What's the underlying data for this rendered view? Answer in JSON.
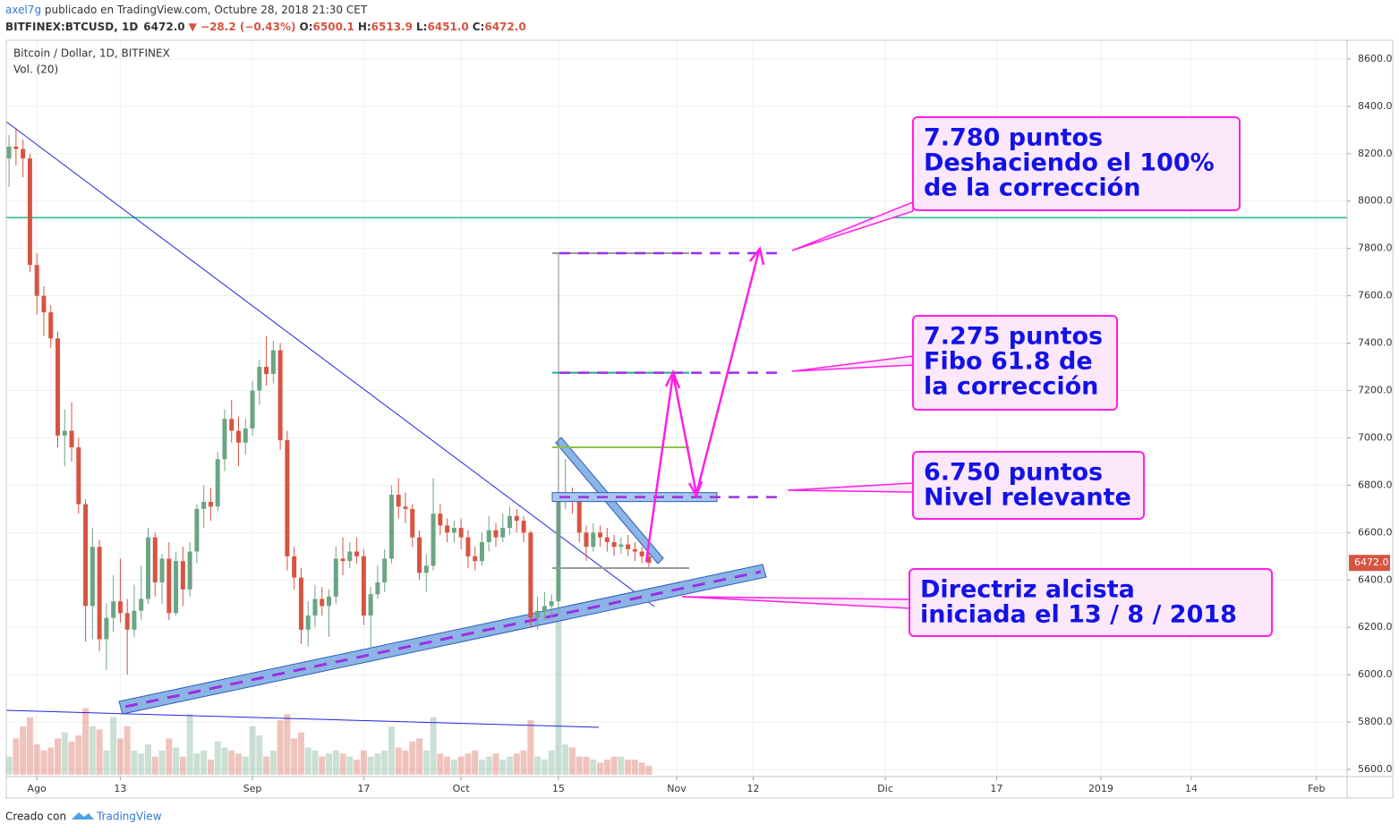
{
  "header": {
    "author": "axel7g",
    "published": " publicado en TradingView.com, Octubre 28, 2018 21:30 CET",
    "symbol": "BITFINEX:BTCUSD, 1D",
    "last": "6472.0",
    "change": "▼ −28.2 (−0.43%)",
    "ohlc": [
      {
        "label": "O:",
        "value": "6500.1"
      },
      {
        "label": "H:",
        "value": "6513.9"
      },
      {
        "label": "L:",
        "value": "6451.0"
      },
      {
        "label": "C:",
        "value": "6472.0"
      }
    ]
  },
  "footer": {
    "made_with": "Creado con",
    "brand": "TradingView"
  },
  "chart_data": {
    "type": "candlestick",
    "legend": [
      "Bitcoin / Dollar, 1D, BITFINEX",
      "Vol. (20)"
    ],
    "up_color": "#6ba583",
    "down_color": "#d75442",
    "grid": true,
    "candles": [
      [
        8180,
        8280,
        8060,
        8230
      ],
      [
        8230,
        8310,
        8150,
        8220
      ],
      [
        8220,
        8260,
        8100,
        8180
      ],
      [
        8180,
        8200,
        7700,
        7730
      ],
      [
        7730,
        7780,
        7520,
        7600
      ],
      [
        7600,
        7640,
        7430,
        7530
      ],
      [
        7530,
        7560,
        7380,
        7420
      ],
      [
        7420,
        7450,
        6960,
        7010
      ],
      [
        7010,
        7120,
        6880,
        7030
      ],
      [
        7030,
        7150,
        6900,
        6960
      ],
      [
        6960,
        7000,
        6680,
        6720
      ],
      [
        6720,
        6740,
        6140,
        6290
      ],
      [
        6290,
        6620,
        6150,
        6540
      ],
      [
        6540,
        6570,
        6100,
        6150
      ],
      [
        6150,
        6300,
        6020,
        6240
      ],
      [
        6240,
        6420,
        6180,
        6310
      ],
      [
        6310,
        6490,
        6220,
        6260
      ],
      [
        6260,
        6320,
        6000,
        6190
      ],
      [
        6190,
        6380,
        6160,
        6270
      ],
      [
        6270,
        6460,
        6230,
        6320
      ],
      [
        6320,
        6620,
        6300,
        6580
      ],
      [
        6580,
        6600,
        6330,
        6390
      ],
      [
        6390,
        6510,
        6300,
        6490
      ],
      [
        6490,
        6560,
        6230,
        6260
      ],
      [
        6260,
        6520,
        6250,
        6480
      ],
      [
        6480,
        6540,
        6290,
        6360
      ],
      [
        6360,
        6560,
        6330,
        6520
      ],
      [
        6520,
        6720,
        6470,
        6700
      ],
      [
        6700,
        6800,
        6620,
        6730
      ],
      [
        6730,
        6790,
        6650,
        6710
      ],
      [
        6710,
        6940,
        6690,
        6910
      ],
      [
        6910,
        7120,
        6860,
        7080
      ],
      [
        7080,
        7160,
        6980,
        7030
      ],
      [
        7030,
        7090,
        6880,
        6980
      ],
      [
        6980,
        7080,
        6930,
        7040
      ],
      [
        7040,
        7240,
        7010,
        7200
      ],
      [
        7200,
        7330,
        7140,
        7300
      ],
      [
        7300,
        7430,
        7220,
        7270
      ],
      [
        7270,
        7410,
        7230,
        7370
      ],
      [
        7370,
        7400,
        6950,
        6990
      ],
      [
        6990,
        7030,
        6440,
        6500
      ],
      [
        6500,
        6540,
        6360,
        6410
      ],
      [
        6410,
        6450,
        6130,
        6190
      ],
      [
        6190,
        6310,
        6120,
        6250
      ],
      [
        6250,
        6380,
        6200,
        6320
      ],
      [
        6320,
        6370,
        6250,
        6290
      ],
      [
        6290,
        6360,
        6160,
        6330
      ],
      [
        6330,
        6540,
        6300,
        6490
      ],
      [
        6490,
        6580,
        6420,
        6480
      ],
      [
        6480,
        6560,
        6450,
        6520
      ],
      [
        6520,
        6580,
        6470,
        6500
      ],
      [
        6500,
        6530,
        6210,
        6250
      ],
      [
        6250,
        6370,
        6110,
        6340
      ],
      [
        6340,
        6460,
        6320,
        6390
      ],
      [
        6390,
        6530,
        6350,
        6490
      ],
      [
        6490,
        6800,
        6470,
        6760
      ],
      [
        6760,
        6830,
        6660,
        6710
      ],
      [
        6710,
        6770,
        6640,
        6700
      ],
      [
        6700,
        6720,
        6540,
        6580
      ],
      [
        6580,
        6610,
        6400,
        6430
      ],
      [
        6430,
        6510,
        6350,
        6460
      ],
      [
        6460,
        6830,
        6440,
        6680
      ],
      [
        6680,
        6720,
        6590,
        6630
      ],
      [
        6630,
        6660,
        6560,
        6600
      ],
      [
        6600,
        6650,
        6560,
        6620
      ],
      [
        6620,
        6660,
        6530,
        6580
      ],
      [
        6580,
        6610,
        6450,
        6500
      ],
      [
        6500,
        6540,
        6440,
        6480
      ],
      [
        6480,
        6600,
        6460,
        6560
      ],
      [
        6560,
        6670,
        6520,
        6610
      ],
      [
        6610,
        6640,
        6540,
        6580
      ],
      [
        6580,
        6680,
        6560,
        6620
      ],
      [
        6620,
        6710,
        6590,
        6670
      ],
      [
        6670,
        6700,
        6600,
        6650
      ],
      [
        6650,
        6670,
        6560,
        6600
      ],
      [
        6600,
        6610,
        6200,
        6240
      ],
      [
        6240,
        6330,
        6190,
        6270
      ],
      [
        6270,
        6350,
        6230,
        6290
      ],
      [
        6290,
        6340,
        6240,
        6310
      ],
      [
        6310,
        6990,
        6250,
        6730
      ],
      [
        6730,
        6910,
        6700,
        6750
      ],
      [
        6750,
        6790,
        6680,
        6730
      ],
      [
        6730,
        6760,
        6560,
        6600
      ],
      [
        6600,
        6630,
        6480,
        6540
      ],
      [
        6540,
        6640,
        6520,
        6600
      ],
      [
        6600,
        6630,
        6540,
        6580
      ],
      [
        6580,
        6620,
        6520,
        6560
      ],
      [
        6560,
        6590,
        6500,
        6540
      ],
      [
        6540,
        6580,
        6510,
        6550
      ],
      [
        6550,
        6590,
        6500,
        6530
      ],
      [
        6530,
        6560,
        6480,
        6520
      ],
      [
        6520,
        6540,
        6470,
        6500
      ],
      [
        6500,
        6514,
        6451,
        6472
      ]
    ],
    "volume": [
      30,
      60,
      80,
      95,
      50,
      40,
      45,
      60,
      70,
      55,
      65,
      110,
      80,
      75,
      40,
      95,
      60,
      80,
      40,
      35,
      50,
      30,
      40,
      60,
      45,
      30,
      100,
      35,
      40,
      25,
      55,
      45,
      40,
      35,
      30,
      80,
      65,
      30,
      40,
      90,
      100,
      60,
      70,
      45,
      40,
      30,
      35,
      40,
      35,
      30,
      25,
      40,
      30,
      35,
      40,
      80,
      45,
      40,
      55,
      60,
      40,
      95,
      35,
      30,
      25,
      30,
      35,
      40,
      25,
      30,
      35,
      25,
      30,
      35,
      40,
      90,
      30,
      25,
      40,
      260,
      50,
      45,
      30,
      30,
      25,
      20,
      25,
      30,
      30,
      25,
      25,
      20,
      15
    ],
    "xlim": [
      -0.4,
      192.4
    ],
    "xticks": [
      {
        "value": 4,
        "label": "Ago"
      },
      {
        "value": 16,
        "label": "13"
      },
      {
        "value": 35,
        "label": "Sep"
      },
      {
        "value": 51,
        "label": "17"
      },
      {
        "value": 65,
        "label": "Oct"
      },
      {
        "value": 79,
        "label": "15"
      },
      {
        "value": 96,
        "label": "Nov"
      },
      {
        "value": 107,
        "label": "12"
      },
      {
        "value": 126,
        "label": "Dic"
      },
      {
        "value": 142,
        "label": "17"
      },
      {
        "value": 157,
        "label": "2019"
      },
      {
        "value": 170,
        "label": "14"
      },
      {
        "value": 188,
        "label": "Feb"
      }
    ],
    "ylim": [
      5570,
      8679
    ],
    "yticks": [
      {
        "value": 5600,
        "label": "5600.0"
      },
      {
        "value": 5800,
        "label": "5800.0"
      },
      {
        "value": 6000,
        "label": "6000.0"
      },
      {
        "value": 6200,
        "label": "6200.0"
      },
      {
        "value": 6400,
        "label": "6400.0"
      },
      {
        "value": 6600,
        "label": "6600.0"
      },
      {
        "value": 6800,
        "label": "6800.0"
      },
      {
        "value": 7000,
        "label": "7000.0"
      },
      {
        "value": 7200,
        "label": "7200.0"
      },
      {
        "value": 7400,
        "label": "7400.0"
      },
      {
        "value": 7600,
        "label": "7600.0"
      },
      {
        "value": 7800,
        "label": "7800.0"
      },
      {
        "value": 8000,
        "label": "8000.0"
      },
      {
        "value": 8200,
        "label": "8200.0"
      },
      {
        "value": 8400,
        "label": "8400.0"
      },
      {
        "value": 8600,
        "label": "8600.0"
      }
    ],
    "last_price": {
      "value": 6472,
      "label": "6472.0"
    },
    "horizontal_line": 7930,
    "fib_levels": [
      {
        "value": 7780,
        "color": "#999999"
      },
      {
        "value": 7275,
        "color": "#26a69a"
      },
      {
        "value": 6960,
        "color": "#8bc34a"
      },
      {
        "value": 6450,
        "color": "#999999"
      }
    ],
    "target_levels": [
      7780,
      7275,
      6750
    ],
    "annotations": [
      [
        "7.780 puntos",
        "Deshaciendo el 100%",
        "de la corrección"
      ],
      [
        "7.275 puntos",
        "Fibo 61.8 de",
        "la corrección"
      ],
      [
        "6.750 puntos",
        "Nivel relevante"
      ],
      [
        "Directriz alcista",
        "iniciada el 13 / 8 / 2018"
      ]
    ]
  }
}
